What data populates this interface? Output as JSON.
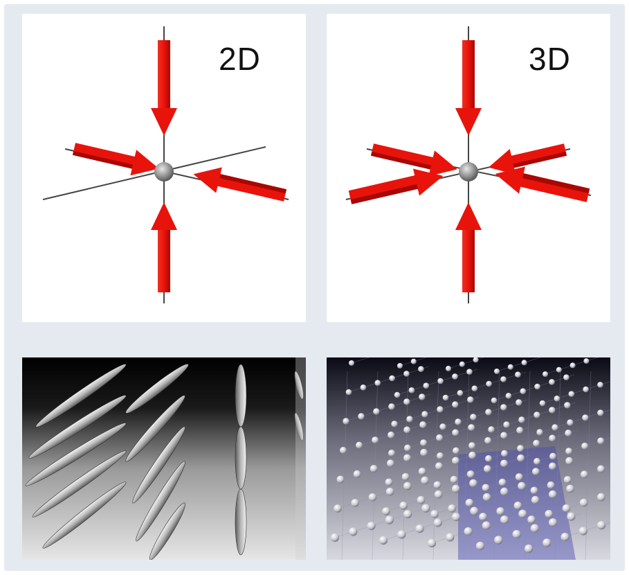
{
  "panels": {
    "top_left": {
      "label": "2D"
    },
    "top_right": {
      "label": "3D"
    }
  },
  "colors": {
    "arrow": "#e8140c",
    "arrow_dark": "#a80804",
    "frame": "#e5eaf0",
    "node": "#8c8c8c"
  }
}
